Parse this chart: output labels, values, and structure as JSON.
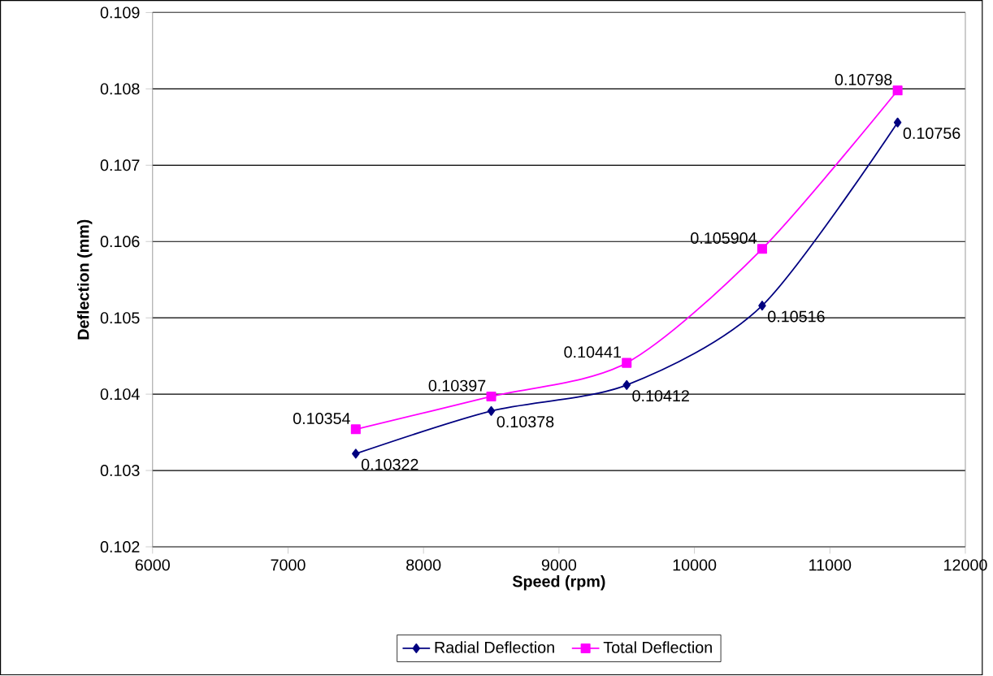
{
  "chart_data": {
    "type": "line",
    "xlabel": "Speed (rpm)",
    "ylabel": "Deflection (mm)",
    "x": [
      7500,
      8500,
      9500,
      10500,
      11500
    ],
    "series": [
      {
        "name": "Radial Deflection",
        "color": "#000080",
        "marker": "diamond",
        "values": [
          0.10322,
          0.10378,
          0.10412,
          0.10516,
          0.10756
        ]
      },
      {
        "name": "Total Deflection",
        "color": "#ff00ff",
        "marker": "square",
        "values": [
          0.10354,
          0.10397,
          0.10441,
          0.105904,
          0.10798
        ]
      }
    ],
    "xlim": [
      6000,
      12000
    ],
    "xticks": [
      6000,
      7000,
      8000,
      9000,
      10000,
      11000,
      12000
    ],
    "ylim": [
      0.102,
      0.109
    ],
    "yticks": [
      0.102,
      0.103,
      0.104,
      0.105,
      0.106,
      0.107,
      0.108,
      0.109
    ],
    "grid": "y",
    "legend": "bottom",
    "data_labels": true
  }
}
